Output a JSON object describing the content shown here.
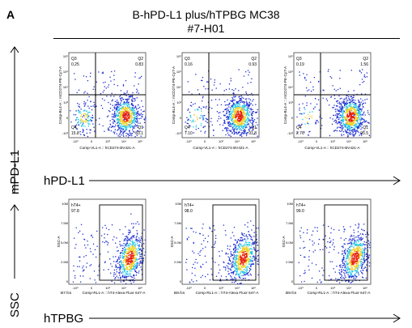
{
  "panel_label": "A",
  "title_line1": "B-hPD-L1 plus/hTPBG  MC38",
  "title_line2": "#7-H01",
  "row1_y_axis_label": "mPD-L1",
  "row1_x_axis_label": "hPD-L1",
  "row2_y_axis_label": "SSC",
  "row2_x_axis_label": "hTPBG",
  "colors": {
    "density_low": "#1f2ed0",
    "density_mid": "#22c8e8",
    "density_high": "#f0d020",
    "density_peak": "#e82010"
  },
  "chart_data": [
    {
      "type": "scatter",
      "plot": "density-dot-plot",
      "row": "hPD-L1 vs mPD-L1",
      "samples": [
        {
          "ylabel": "Comp-BL4-A :: mCD274-PE-Cy7-A",
          "xlabel": "Comp-VL1-A :: hCD274-BV421-A",
          "quadrants": [
            {
              "name": "Q1",
              "value": "83.1"
            },
            {
              "name": "Q2",
              "value": "0.83"
            },
            {
              "name": "Q3",
              "value": "0.25"
            },
            {
              "name": "Q4",
              "value": "15.8"
            }
          ]
        },
        {
          "ylabel": "Comp-BL4-A :: mCD274-PE-Cy7-A",
          "xlabel": "Comp-VL1-A :: hCD274-BV421-A",
          "quadrants": [
            {
              "name": "Q1",
              "value": "91.8"
            },
            {
              "name": "Q2",
              "value": "0.93"
            },
            {
              "name": "Q3",
              "value": "0.16"
            },
            {
              "name": "Q4",
              "value": "7.10"
            }
          ]
        },
        {
          "ylabel": "Comp-BL4-A :: mCD274-PE-Cy7-A",
          "xlabel": "Comp-VL1-A :: hCD274-BV421-A",
          "quadrants": [
            {
              "name": "Q1",
              "value": "95.5"
            },
            {
              "name": "Q2",
              "value": "1.56"
            },
            {
              "name": "Q3",
              "value": "0.19"
            },
            {
              "name": "Q4",
              "value": "2.76"
            }
          ]
        }
      ],
      "x_ticks": [
        "-10³",
        "0",
        "10³",
        "10⁴",
        "10⁵"
      ],
      "y_ticks": [
        "-10³",
        "0",
        "10³",
        "10⁴",
        "10⁵",
        "10⁶"
      ]
    },
    {
      "type": "scatter",
      "plot": "density-dot-plot",
      "row": "hTPBG vs SSC",
      "samples": [
        {
          "file": "B7.fcs",
          "ylabel": "SSC-A",
          "xlabel": "Comp-RL1-A :: hT4-Alexa Fluor  647-A",
          "gate": "hT4+",
          "gate_value": "97.8"
        },
        {
          "file": "B8.fcs",
          "ylabel": "SSC-A",
          "xlabel": "Comp-RL1-A :: hT4-Alexa Fluor  647-A",
          "gate": "hT4+",
          "gate_value": "98.0"
        },
        {
          "file": "B9.fcs",
          "ylabel": "SSC-A",
          "xlabel": "Comp-RL1-A :: hT4-Alexa Fluor  647-A",
          "gate": "hT4+",
          "gate_value": "99.0"
        }
      ],
      "x_ticks": [
        "-10³",
        "0",
        "10³",
        "10⁴",
        "10⁵"
      ],
      "y_ticks": [
        "0",
        "2.5M",
        "5.0M",
        "7.5M",
        "10M"
      ]
    }
  ]
}
